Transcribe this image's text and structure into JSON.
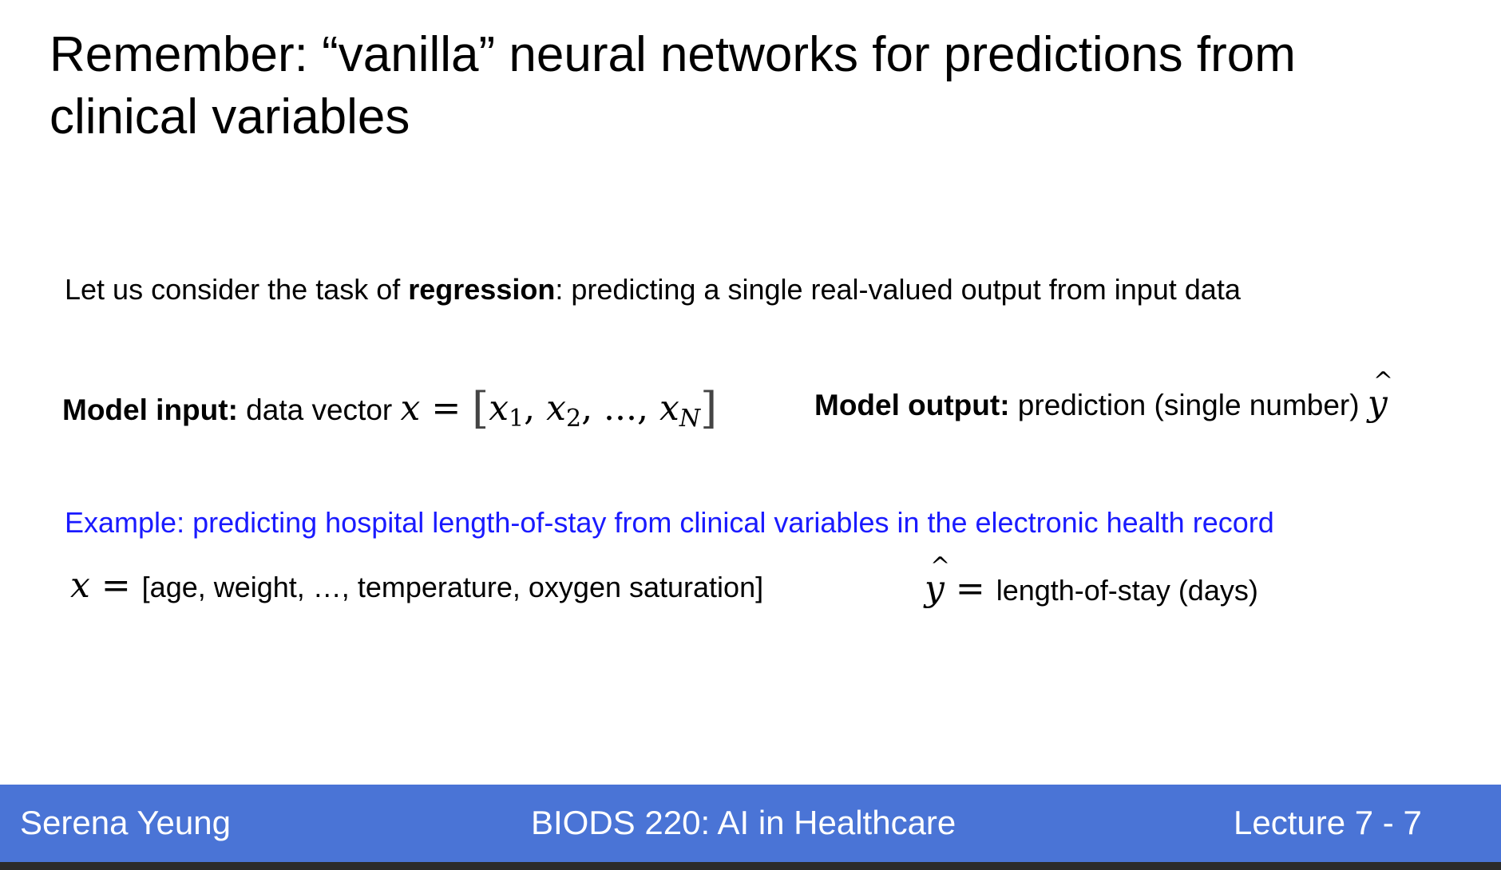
{
  "slide": {
    "title": "Remember: “vanilla” neural networks for predictions from clinical variables",
    "intro": {
      "prefix": "Let us consider the task of ",
      "bold": "regression",
      "suffix": ": predicting a single real-valued output from input data"
    },
    "model_input": {
      "label": "Model input:",
      "text": " data vector ",
      "var": "x",
      "eq": " = ",
      "vec_open": "[",
      "x1": "x",
      "x1_sub": "1",
      "x2": "x",
      "x2_sub": "2",
      "sep": ", ..., ",
      "xn": "x",
      "xn_sub": "N",
      "vec_close": "]"
    },
    "model_output": {
      "label": "Model output:",
      "text": " prediction (single number) ",
      "var": "y"
    },
    "example": {
      "heading": "Example: predicting hospital length-of-stay from clinical variables in the electronic health record",
      "x_var": "x",
      "x_eq": " = ",
      "x_value": "[age, weight, …, temperature, oxygen saturation]",
      "y_var": "y",
      "y_eq": " = ",
      "y_value": "length-of-stay (days)"
    }
  },
  "footer": {
    "author": "Serena Yeung",
    "course": "BIODS 220: AI in Healthcare",
    "lecture": "Lecture 7 - 7"
  },
  "colors": {
    "footer_bg": "#4a74d6",
    "example_text": "#1a1aff"
  }
}
